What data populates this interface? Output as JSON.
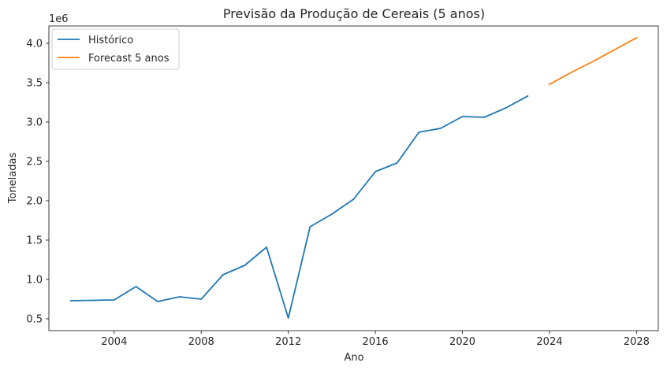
{
  "chart_data": {
    "type": "line",
    "title": "Previsão da Produção de Cereais (5 anos)",
    "xlabel": "Ano",
    "ylabel": "Toneladas",
    "y_offset_label": "1e6",
    "xlim": [
      2001.0,
      2029.0
    ],
    "ylim": [
      0.35,
      4.22
    ],
    "x_ticks": [
      2004,
      2008,
      2012,
      2016,
      2020,
      2024,
      2028
    ],
    "y_ticks": [
      0.5,
      1.0,
      1.5,
      2.0,
      2.5,
      3.0,
      3.5,
      4.0
    ],
    "y_tick_labels": [
      "0.5",
      "1.0",
      "1.5",
      "2.0",
      "2.5",
      "3.0",
      "3.5",
      "4.0"
    ],
    "grid": false,
    "legend_position": "top-left",
    "series": [
      {
        "name": "Histórico",
        "color": "#1f77b4",
        "x": [
          2002,
          2003,
          2004,
          2005,
          2006,
          2007,
          2008,
          2009,
          2010,
          2011,
          2012,
          2013,
          2014,
          2015,
          2016,
          2017,
          2018,
          2019,
          2020,
          2021,
          2022,
          2023
        ],
        "values": [
          0.73,
          0.735,
          0.74,
          0.91,
          0.72,
          0.78,
          0.75,
          1.06,
          1.18,
          1.41,
          0.51,
          1.67,
          1.83,
          2.02,
          2.37,
          2.48,
          2.87,
          2.92,
          3.07,
          3.06,
          3.18,
          3.33
        ]
      },
      {
        "name": "Forecast 5 anos",
        "color": "#ff7f0e",
        "x": [
          2024,
          2025,
          2026,
          2027,
          2028
        ],
        "values": [
          3.48,
          3.63,
          3.77,
          3.92,
          4.07
        ]
      }
    ]
  }
}
